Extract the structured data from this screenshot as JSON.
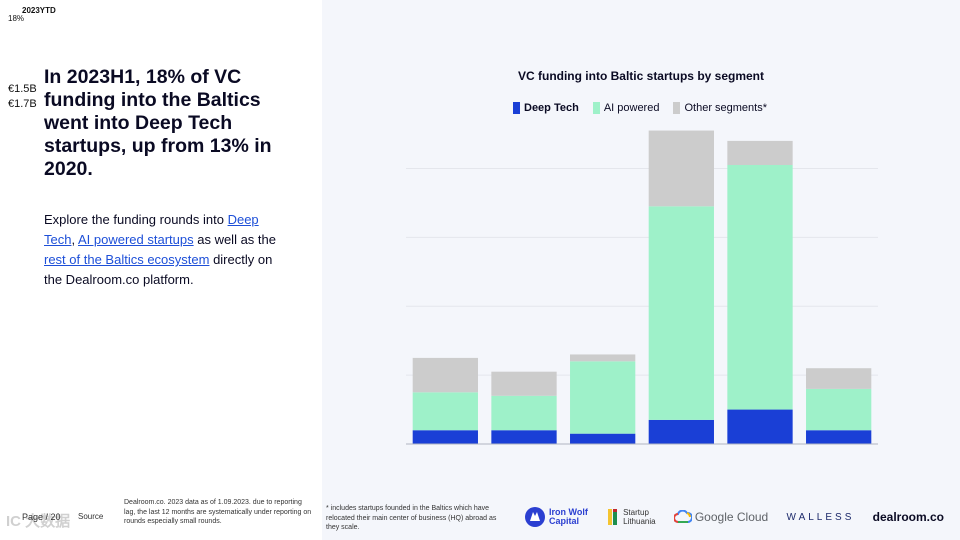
{
  "corner": {
    "label_a": "2023YTD",
    "label_b": "18%"
  },
  "side_values": [
    "€1.5B",
    "€1.7B"
  ],
  "headline": "In 2023H1, 18% of VC funding into the Baltics went into Deep Tech startups, up from 13% in 2020.",
  "explore": {
    "prefix": "Explore the funding rounds into ",
    "link1": "Deep Tech",
    "sep1": ", ",
    "link2": "AI powered startups",
    "mid": " as well as the ",
    "link3": "rest of the Baltics ecosystem",
    "suffix": " directly on the Dealroom.co platform."
  },
  "footer": {
    "page": "Page / 20",
    "source": "Source",
    "note": "Dealroom.co. 2023 data as of 1.09.2023. due to reporting lag, the last 12 months are systematically under reporting on rounds especially small rounds."
  },
  "watermark": "IC 大数据",
  "footnote": "* includes startups founded in the Baltics which have relocated their main center of business (HQ) abroad as they scale.",
  "logos": {
    "ironwolf_1": "Iron Wolf",
    "ironwolf_2": "Capital",
    "startup_1": "Startup",
    "startup_2": "Lithuania",
    "google": "Google Cloud",
    "walless": "WALLESS",
    "dealroom": "dealroom.co"
  },
  "colors": {
    "deep_tech": "#1a3fd6",
    "ai_powered": "#9ef1c9",
    "other": "#cccccc",
    "grid": "#e4e6ec"
  },
  "chart_data": {
    "type": "bar",
    "stacked": true,
    "title": "VC funding into Baltic startups by segment",
    "categories": [
      "",
      "",
      "",
      "",
      "",
      ""
    ],
    "series": [
      {
        "name": "Deep Tech",
        "key": "deep_tech",
        "values": [
          0.04,
          0.04,
          0.03,
          0.07,
          0.1,
          0.04
        ]
      },
      {
        "name": "AI powered",
        "key": "ai_powered",
        "values": [
          0.11,
          0.1,
          0.21,
          0.62,
          0.71,
          0.12
        ]
      },
      {
        "name": "Other segments*",
        "key": "other",
        "values": [
          0.1,
          0.07,
          0.02,
          0.22,
          0.07,
          0.06
        ]
      }
    ],
    "ylim": [
      0,
      0.9
    ],
    "gridlines": [
      0,
      0.2,
      0.4,
      0.6,
      0.8
    ],
    "xlabel": "",
    "ylabel": "",
    "legend_position": "top"
  }
}
